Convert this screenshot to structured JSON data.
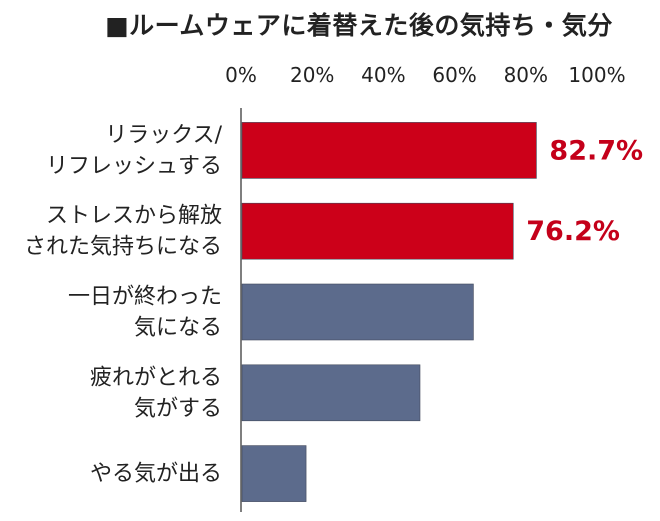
{
  "chart_data": {
    "type": "bar",
    "orientation": "horizontal",
    "title": "■ルームウェアに着替えた後の気持ち・気分",
    "categories": [
      [
        "リラックス/",
        "リフレッシュする"
      ],
      [
        "ストレスから解放",
        "された気持ちになる"
      ],
      [
        "一日が終わった",
        "気になる"
      ],
      [
        "疲れがとれる",
        "気がする"
      ],
      [
        "やる気が出る"
      ]
    ],
    "values": [
      82.7,
      76.2,
      65.0,
      50.0,
      18.0
    ],
    "data_labels": [
      "82.7%",
      "76.2%",
      "",
      "",
      ""
    ],
    "xlim": [
      0,
      100
    ],
    "x_ticks": [
      "0%",
      "20%",
      "40%",
      "60%",
      "80%",
      "100%"
    ],
    "tick_values": [
      0,
      20,
      40,
      60,
      80,
      100
    ],
    "axis_position": "top",
    "grid": false,
    "colors": {
      "highlight": "#cc0019",
      "normal": "#5c6b8c",
      "label": "#c4001a"
    },
    "highlight_flags": [
      true,
      true,
      false,
      false,
      false
    ]
  }
}
